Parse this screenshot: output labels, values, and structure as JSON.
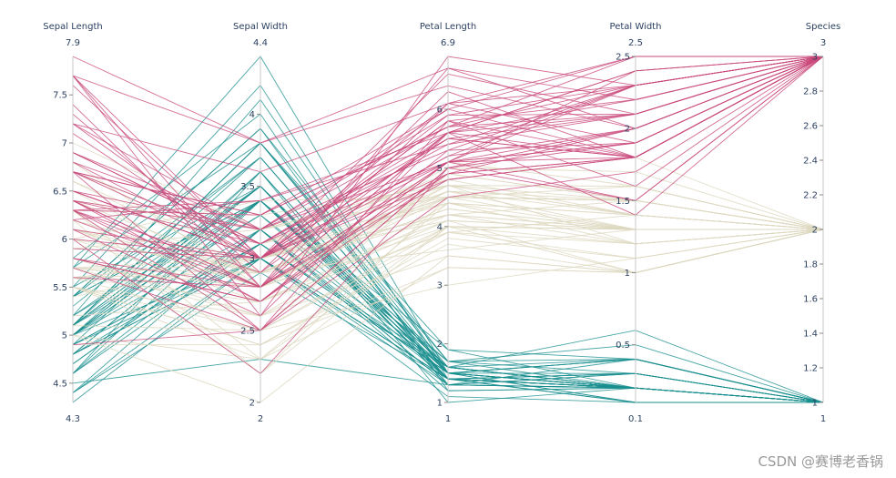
{
  "chart_data": {
    "type": "parallel_coordinates",
    "title": "",
    "color_scale": {
      "1": "#1a8f8f",
      "2": "#ddd8bf",
      "3": "#c9487a"
    },
    "dimensions": [
      {
        "key": "sepal_length",
        "label": "Sepal Length",
        "range": [
          4.3,
          7.9
        ],
        "range_labels": [
          "4.3",
          "7.9"
        ],
        "ticks": [
          {
            "v": 4.5,
            "t": "4.5"
          },
          {
            "v": 5,
            "t": "5"
          },
          {
            "v": 5.5,
            "t": "5.5"
          },
          {
            "v": 6,
            "t": "6"
          },
          {
            "v": 6.5,
            "t": "6.5"
          },
          {
            "v": 7,
            "t": "7"
          },
          {
            "v": 7.5,
            "t": "7.5"
          }
        ]
      },
      {
        "key": "sepal_width",
        "label": "Sepal Width",
        "range": [
          2,
          4.4
        ],
        "range_labels": [
          "2",
          "4.4"
        ],
        "ticks": [
          {
            "v": 2,
            "t": "2"
          },
          {
            "v": 2.5,
            "t": "2.5"
          },
          {
            "v": 3,
            "t": "3"
          },
          {
            "v": 3.5,
            "t": "3.5"
          },
          {
            "v": 4,
            "t": "4"
          }
        ]
      },
      {
        "key": "petal_length",
        "label": "Petal Length",
        "range": [
          1,
          6.9
        ],
        "range_labels": [
          "1",
          "6.9"
        ],
        "ticks": [
          {
            "v": 1,
            "t": "1"
          },
          {
            "v": 2,
            "t": "2"
          },
          {
            "v": 3,
            "t": "3"
          },
          {
            "v": 4,
            "t": "4"
          },
          {
            "v": 5,
            "t": "5"
          },
          {
            "v": 6,
            "t": "6"
          }
        ]
      },
      {
        "key": "petal_width",
        "label": "Petal Width",
        "range": [
          0.1,
          2.5
        ],
        "range_labels": [
          "0.1",
          "2.5"
        ],
        "ticks": [
          {
            "v": 0.5,
            "t": "0.5"
          },
          {
            "v": 1,
            "t": "1"
          },
          {
            "v": 1.5,
            "t": "1.5"
          },
          {
            "v": 2,
            "t": "2"
          },
          {
            "v": 2.5,
            "t": "2.5"
          }
        ]
      },
      {
        "key": "species",
        "label": "Species",
        "range": [
          1,
          3
        ],
        "range_labels": [
          "1",
          "3"
        ],
        "ticks": [
          {
            "v": 1,
            "t": "1"
          },
          {
            "v": 1.2,
            "t": "1.2"
          },
          {
            "v": 1.4,
            "t": "1.4"
          },
          {
            "v": 1.6,
            "t": "1.6"
          },
          {
            "v": 1.8,
            "t": "1.8"
          },
          {
            "v": 2,
            "t": "2"
          },
          {
            "v": 2.2,
            "t": "2.2"
          },
          {
            "v": 2.4,
            "t": "2.4"
          },
          {
            "v": 2.6,
            "t": "2.6"
          },
          {
            "v": 2.8,
            "t": "2.8"
          },
          {
            "v": 3,
            "t": "3"
          }
        ]
      }
    ],
    "records": [
      [
        5.1,
        3.5,
        1.4,
        0.2,
        1
      ],
      [
        4.9,
        3.0,
        1.4,
        0.2,
        1
      ],
      [
        4.7,
        3.2,
        1.3,
        0.2,
        1
      ],
      [
        4.6,
        3.1,
        1.5,
        0.2,
        1
      ],
      [
        5.0,
        3.6,
        1.4,
        0.2,
        1
      ],
      [
        5.4,
        3.9,
        1.7,
        0.4,
        1
      ],
      [
        4.6,
        3.4,
        1.4,
        0.3,
        1
      ],
      [
        5.0,
        3.4,
        1.5,
        0.2,
        1
      ],
      [
        4.4,
        2.9,
        1.4,
        0.2,
        1
      ],
      [
        4.9,
        3.1,
        1.5,
        0.1,
        1
      ],
      [
        5.4,
        3.7,
        1.5,
        0.2,
        1
      ],
      [
        4.8,
        3.4,
        1.6,
        0.2,
        1
      ],
      [
        4.8,
        3.0,
        1.4,
        0.1,
        1
      ],
      [
        4.3,
        3.0,
        1.1,
        0.1,
        1
      ],
      [
        5.8,
        4.0,
        1.2,
        0.2,
        1
      ],
      [
        5.7,
        4.4,
        1.5,
        0.4,
        1
      ],
      [
        5.4,
        3.9,
        1.3,
        0.4,
        1
      ],
      [
        5.1,
        3.5,
        1.4,
        0.3,
        1
      ],
      [
        5.7,
        3.8,
        1.7,
        0.3,
        1
      ],
      [
        5.1,
        3.8,
        1.5,
        0.3,
        1
      ],
      [
        5.4,
        3.4,
        1.7,
        0.2,
        1
      ],
      [
        5.1,
        3.7,
        1.5,
        0.4,
        1
      ],
      [
        4.6,
        3.6,
        1.0,
        0.2,
        1
      ],
      [
        5.1,
        3.3,
        1.7,
        0.5,
        1
      ],
      [
        4.8,
        3.4,
        1.9,
        0.2,
        1
      ],
      [
        5.0,
        3.0,
        1.6,
        0.2,
        1
      ],
      [
        5.0,
        3.4,
        1.6,
        0.4,
        1
      ],
      [
        5.2,
        3.5,
        1.5,
        0.2,
        1
      ],
      [
        5.2,
        3.4,
        1.4,
        0.2,
        1
      ],
      [
        4.7,
        3.2,
        1.6,
        0.2,
        1
      ],
      [
        4.8,
        3.1,
        1.6,
        0.2,
        1
      ],
      [
        5.4,
        3.4,
        1.5,
        0.4,
        1
      ],
      [
        5.2,
        4.1,
        1.5,
        0.1,
        1
      ],
      [
        5.5,
        4.2,
        1.4,
        0.2,
        1
      ],
      [
        4.9,
        3.1,
        1.5,
        0.2,
        1
      ],
      [
        5.0,
        3.2,
        1.2,
        0.2,
        1
      ],
      [
        5.5,
        3.5,
        1.3,
        0.2,
        1
      ],
      [
        4.9,
        3.6,
        1.4,
        0.1,
        1
      ],
      [
        4.4,
        3.0,
        1.3,
        0.2,
        1
      ],
      [
        5.1,
        3.4,
        1.5,
        0.2,
        1
      ],
      [
        5.0,
        3.5,
        1.3,
        0.3,
        1
      ],
      [
        4.5,
        2.3,
        1.3,
        0.3,
        1
      ],
      [
        4.4,
        3.2,
        1.3,
        0.2,
        1
      ],
      [
        5.0,
        3.5,
        1.6,
        0.6,
        1
      ],
      [
        5.1,
        3.8,
        1.9,
        0.4,
        1
      ],
      [
        4.8,
        3.0,
        1.4,
        0.3,
        1
      ],
      [
        5.1,
        3.8,
        1.6,
        0.2,
        1
      ],
      [
        4.6,
        3.2,
        1.4,
        0.2,
        1
      ],
      [
        5.3,
        3.7,
        1.5,
        0.2,
        1
      ],
      [
        5.0,
        3.3,
        1.4,
        0.2,
        1
      ],
      [
        7.0,
        3.2,
        4.7,
        1.4,
        2
      ],
      [
        6.4,
        3.2,
        4.5,
        1.5,
        2
      ],
      [
        6.9,
        3.1,
        4.9,
        1.5,
        2
      ],
      [
        5.5,
        2.3,
        4.0,
        1.3,
        2
      ],
      [
        6.5,
        2.8,
        4.6,
        1.5,
        2
      ],
      [
        5.7,
        2.8,
        4.5,
        1.3,
        2
      ],
      [
        6.3,
        3.3,
        4.7,
        1.6,
        2
      ],
      [
        4.9,
        2.4,
        3.3,
        1.0,
        2
      ],
      [
        6.6,
        2.9,
        4.6,
        1.3,
        2
      ],
      [
        5.2,
        2.7,
        3.9,
        1.4,
        2
      ],
      [
        5.0,
        2.0,
        3.5,
        1.0,
        2
      ],
      [
        5.9,
        3.0,
        4.2,
        1.5,
        2
      ],
      [
        6.0,
        2.2,
        4.0,
        1.0,
        2
      ],
      [
        6.1,
        2.9,
        4.7,
        1.4,
        2
      ],
      [
        5.6,
        2.9,
        3.6,
        1.3,
        2
      ],
      [
        6.7,
        3.1,
        4.4,
        1.4,
        2
      ],
      [
        5.6,
        3.0,
        4.5,
        1.5,
        2
      ],
      [
        5.8,
        2.7,
        4.1,
        1.0,
        2
      ],
      [
        6.2,
        2.2,
        4.5,
        1.5,
        2
      ],
      [
        5.6,
        2.5,
        3.9,
        1.1,
        2
      ],
      [
        5.9,
        3.2,
        4.8,
        1.8,
        2
      ],
      [
        6.1,
        2.8,
        4.0,
        1.3,
        2
      ],
      [
        6.3,
        2.5,
        4.9,
        1.5,
        2
      ],
      [
        6.1,
        2.8,
        4.7,
        1.2,
        2
      ],
      [
        6.4,
        2.9,
        4.3,
        1.3,
        2
      ],
      [
        6.6,
        3.0,
        4.4,
        1.4,
        2
      ],
      [
        6.8,
        2.8,
        4.8,
        1.4,
        2
      ],
      [
        6.7,
        3.0,
        5.0,
        1.7,
        2
      ],
      [
        6.0,
        2.9,
        4.5,
        1.5,
        2
      ],
      [
        5.7,
        2.6,
        3.5,
        1.0,
        2
      ],
      [
        5.5,
        2.4,
        3.8,
        1.1,
        2
      ],
      [
        5.5,
        2.4,
        3.7,
        1.0,
        2
      ],
      [
        5.8,
        2.7,
        3.9,
        1.2,
        2
      ],
      [
        6.0,
        2.7,
        5.1,
        1.6,
        2
      ],
      [
        5.4,
        3.0,
        4.5,
        1.5,
        2
      ],
      [
        6.0,
        3.4,
        4.5,
        1.6,
        2
      ],
      [
        6.7,
        3.1,
        4.7,
        1.5,
        2
      ],
      [
        6.3,
        2.3,
        4.4,
        1.3,
        2
      ],
      [
        5.6,
        3.0,
        4.1,
        1.3,
        2
      ],
      [
        5.5,
        2.5,
        4.0,
        1.3,
        2
      ],
      [
        5.5,
        2.6,
        4.4,
        1.2,
        2
      ],
      [
        6.1,
        3.0,
        4.6,
        1.4,
        2
      ],
      [
        5.8,
        2.6,
        4.0,
        1.2,
        2
      ],
      [
        5.0,
        2.3,
        3.3,
        1.0,
        2
      ],
      [
        5.6,
        2.7,
        4.2,
        1.3,
        2
      ],
      [
        5.7,
        3.0,
        4.2,
        1.2,
        2
      ],
      [
        5.7,
        2.9,
        4.2,
        1.3,
        2
      ],
      [
        6.2,
        2.9,
        4.3,
        1.3,
        2
      ],
      [
        5.1,
        2.5,
        3.0,
        1.1,
        2
      ],
      [
        5.7,
        2.8,
        4.1,
        1.3,
        2
      ],
      [
        6.3,
        3.3,
        6.0,
        2.5,
        3
      ],
      [
        5.8,
        2.7,
        5.1,
        1.9,
        3
      ],
      [
        7.1,
        3.0,
        5.9,
        2.1,
        3
      ],
      [
        6.3,
        2.9,
        5.6,
        1.8,
        3
      ],
      [
        6.5,
        3.0,
        5.8,
        2.2,
        3
      ],
      [
        7.6,
        3.0,
        6.6,
        2.1,
        3
      ],
      [
        4.9,
        2.5,
        4.5,
        1.7,
        3
      ],
      [
        7.3,
        2.9,
        6.3,
        1.8,
        3
      ],
      [
        6.7,
        2.5,
        5.8,
        1.8,
        3
      ],
      [
        7.2,
        3.6,
        6.1,
        2.5,
        3
      ],
      [
        6.5,
        3.2,
        5.1,
        2.0,
        3
      ],
      [
        6.4,
        2.7,
        5.3,
        1.9,
        3
      ],
      [
        6.8,
        3.0,
        5.5,
        2.1,
        3
      ],
      [
        5.7,
        2.5,
        5.0,
        2.0,
        3
      ],
      [
        5.8,
        2.8,
        5.1,
        2.4,
        3
      ],
      [
        6.4,
        3.2,
        5.3,
        2.3,
        3
      ],
      [
        6.5,
        3.0,
        5.5,
        1.8,
        3
      ],
      [
        7.7,
        3.8,
        6.7,
        2.2,
        3
      ],
      [
        7.7,
        2.6,
        6.9,
        2.3,
        3
      ],
      [
        6.0,
        2.2,
        5.0,
        1.5,
        3
      ],
      [
        6.9,
        3.2,
        5.7,
        2.3,
        3
      ],
      [
        5.6,
        2.8,
        4.9,
        2.0,
        3
      ],
      [
        7.7,
        2.8,
        6.7,
        2.0,
        3
      ],
      [
        6.3,
        2.7,
        4.9,
        1.8,
        3
      ],
      [
        6.7,
        3.3,
        5.7,
        2.1,
        3
      ],
      [
        7.2,
        3.2,
        6.0,
        1.8,
        3
      ],
      [
        6.2,
        2.8,
        4.8,
        1.8,
        3
      ],
      [
        6.1,
        3.0,
        4.9,
        1.8,
        3
      ],
      [
        6.4,
        2.8,
        5.6,
        2.1,
        3
      ],
      [
        7.2,
        3.0,
        5.8,
        1.6,
        3
      ],
      [
        7.4,
        2.8,
        6.1,
        1.9,
        3
      ],
      [
        7.9,
        3.8,
        6.4,
        2.0,
        3
      ],
      [
        6.4,
        2.8,
        5.6,
        2.2,
        3
      ],
      [
        6.3,
        2.8,
        5.1,
        1.5,
        3
      ],
      [
        6.1,
        2.6,
        5.6,
        1.4,
        3
      ],
      [
        7.7,
        3.0,
        6.1,
        2.3,
        3
      ],
      [
        6.3,
        3.4,
        5.6,
        2.4,
        3
      ],
      [
        6.4,
        3.1,
        5.5,
        1.8,
        3
      ],
      [
        6.0,
        3.0,
        4.8,
        1.8,
        3
      ],
      [
        6.9,
        3.1,
        5.4,
        2.1,
        3
      ],
      [
        6.7,
        3.1,
        5.6,
        2.4,
        3
      ],
      [
        6.9,
        3.1,
        5.1,
        2.3,
        3
      ],
      [
        5.8,
        2.7,
        5.1,
        1.9,
        3
      ],
      [
        6.8,
        3.2,
        5.9,
        2.3,
        3
      ],
      [
        6.7,
        3.3,
        5.7,
        2.5,
        3
      ],
      [
        6.7,
        3.0,
        5.2,
        2.3,
        3
      ],
      [
        6.3,
        2.5,
        5.0,
        1.9,
        3
      ],
      [
        6.5,
        3.0,
        5.2,
        2.0,
        3
      ],
      [
        6.2,
        3.4,
        5.4,
        2.3,
        3
      ],
      [
        5.9,
        3.0,
        5.1,
        1.8,
        3
      ]
    ]
  },
  "watermark": "CSDN @赛博老香锅"
}
